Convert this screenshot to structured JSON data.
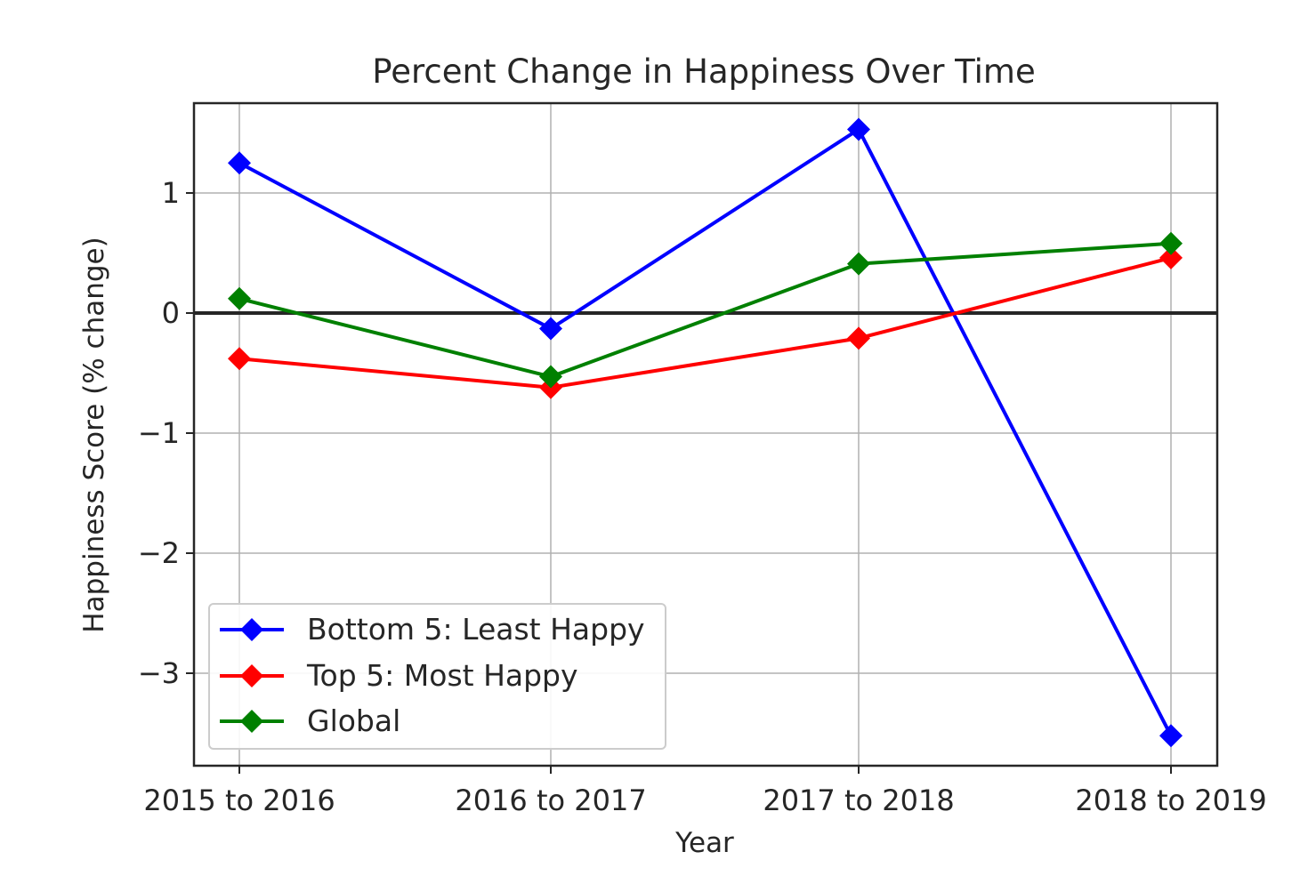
{
  "chart_data": {
    "type": "line",
    "title": "Percent Change in Happiness Over Time",
    "xlabel": "Year",
    "ylabel": "Happiness Score (% change)",
    "categories": [
      "2015 to 2016",
      "2016 to 2017",
      "2017 to 2018",
      "2018 to 2019"
    ],
    "ylim": [
      -3.75,
      1.78
    ],
    "yticks": [
      1,
      0,
      -1,
      -2,
      -3
    ],
    "ytick_labels": [
      "1",
      "0",
      "−1",
      "−2",
      "−3"
    ],
    "grid": true,
    "zero_line": true,
    "legend_position": "lower-left",
    "marker": "diamond",
    "series": [
      {
        "name": "Bottom 5: Least Happy",
        "color": "#0000ff",
        "values": [
          1.25,
          -0.13,
          1.53,
          -3.52
        ]
      },
      {
        "name": "Top 5: Most Happy",
        "color": "#ff0000",
        "values": [
          -0.38,
          -0.62,
          -0.21,
          0.46
        ]
      },
      {
        "name": "Global",
        "color": "#008000",
        "values": [
          0.12,
          -0.53,
          0.41,
          0.58
        ]
      }
    ]
  }
}
